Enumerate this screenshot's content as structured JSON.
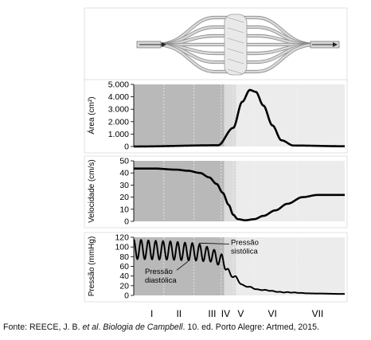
{
  "chart_data": [
    {
      "type": "area",
      "ylabel": "Área (cm²)",
      "ylim": [
        0,
        5000
      ],
      "yticks": [
        "0",
        "1.000",
        "2.000",
        "3.000",
        "4.000",
        "5.000"
      ],
      "x_domain": [
        0,
        7
      ],
      "x": [
        0,
        2.8,
        3.3,
        3.6,
        3.85,
        4.05,
        4.3,
        4.6,
        4.9,
        5.3,
        7
      ],
      "values": [
        0,
        100,
        1500,
        3600,
        4550,
        4400,
        3300,
        1700,
        500,
        80,
        20
      ]
    },
    {
      "type": "line",
      "ylabel": "Velocidade (cm/s)",
      "ylim": [
        0,
        55
      ],
      "yticks": [
        "0",
        "10",
        "20",
        "30",
        "40",
        "50"
      ],
      "x_domain": [
        0,
        7
      ],
      "x": [
        0,
        0.7,
        1.4,
        1.8,
        2.2,
        2.5,
        2.75,
        2.95,
        3.15,
        3.3,
        3.45,
        3.7,
        4.0,
        4.3,
        4.7,
        5.1,
        5.6,
        6.1,
        7
      ],
      "values": [
        48,
        48,
        47,
        46,
        44,
        40,
        34,
        26,
        15,
        6,
        2,
        1,
        2,
        5,
        10,
        16,
        22,
        24,
        24
      ]
    },
    {
      "type": "line",
      "ylabel": "Pressão (mmHg)",
      "ylim": [
        0,
        120
      ],
      "yticks": [
        "0",
        "20",
        "40",
        "60",
        "80",
        "100",
        "120"
      ],
      "x_domain": [
        0,
        7
      ],
      "systolic": {
        "x": [
          0,
          1.0,
          2.0,
          2.5,
          2.9,
          3.25,
          3.7,
          4.2,
          5.0,
          6.0,
          7
        ],
        "values": [
          115,
          112,
          108,
          100,
          85,
          45,
          20,
          12,
          7,
          4,
          3
        ]
      },
      "diastolic": {
        "x": [
          0,
          1.0,
          2.0,
          2.5,
          2.9,
          3.25,
          3.7,
          4.2,
          5.0,
          6.0,
          7
        ],
        "values": [
          75,
          74,
          72,
          70,
          62,
          38,
          18,
          11,
          6,
          4,
          3
        ]
      },
      "pulse_cycles": 14,
      "annotations": [
        "Pressão\nsistólica",
        "Pressão\ndiastólica"
      ]
    }
  ],
  "x_categories": [
    "I",
    "II",
    "III",
    "IV",
    "V",
    "VI",
    "VII"
  ],
  "vessel_diagram": true,
  "caption": {
    "prefix": "Fonte: REECE, J. B. ",
    "etal": "et al",
    "dot": ". ",
    "book": "Biologia de Campbell",
    "suffix": ". 10. ed. Porto Alegre: Artmed, 2015."
  },
  "colors": {
    "shade_dark": "#b9b9b9",
    "shade_mid": "#dcdcdc",
    "shade_light": "#ececec",
    "line": "#000000",
    "vessel": "#d8d8d8",
    "frame": "#555555"
  }
}
